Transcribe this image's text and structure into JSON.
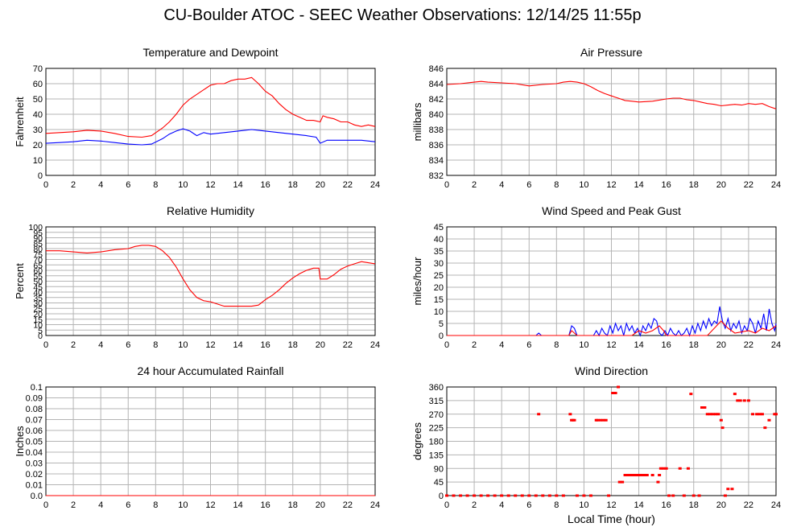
{
  "page": {
    "title": "CU-Boulder ATOC - SEEC Weather Observations: 12/14/25 11:55p"
  },
  "chart_data": [
    {
      "type": "line",
      "title": "Temperature and Dewpoint",
      "xlabel": "",
      "ylabel": "Fahrenheit",
      "xlim": [
        0,
        24
      ],
      "ylim": [
        0,
        70
      ],
      "xticks": [
        0,
        2,
        4,
        6,
        8,
        10,
        12,
        14,
        16,
        18,
        20,
        22,
        24
      ],
      "yticks": [
        0,
        10,
        20,
        30,
        40,
        50,
        60,
        70
      ],
      "ytick_labels": [
        "0",
        "10",
        "20",
        "30",
        "40",
        "50",
        "60",
        "70"
      ],
      "grid": true,
      "series": [
        {
          "color": "#ff0000",
          "x": [
            0,
            1,
            2,
            3,
            4,
            5,
            6,
            7,
            7.7,
            8.5,
            9,
            9.5,
            10,
            10.5,
            11,
            11.5,
            12,
            12.5,
            13,
            13.5,
            14,
            14.5,
            15,
            15.5,
            16,
            16.5,
            17,
            17.5,
            18,
            18.5,
            19,
            19.5,
            20,
            20.2,
            20.5,
            21,
            21.5,
            22,
            22.5,
            23,
            23.5,
            24
          ],
          "y": [
            27.5,
            28,
            28.5,
            29.5,
            29,
            27.5,
            25.5,
            25,
            26,
            31,
            35,
            40,
            46,
            50,
            53,
            56,
            59,
            60,
            60,
            62,
            63,
            63,
            64,
            60,
            55,
            52,
            47,
            43,
            40,
            38,
            36,
            36,
            35,
            39,
            38,
            37,
            35,
            35,
            33,
            32,
            33,
            32
          ]
        },
        {
          "color": "#0000ff",
          "x": [
            0,
            1,
            2,
            3,
            4,
            5,
            6,
            7,
            7.7,
            8.5,
            9,
            9.5,
            10,
            10.5,
            11,
            11.5,
            12,
            13,
            14,
            15,
            16,
            17,
            18,
            19,
            19.7,
            20,
            20.5,
            21,
            22,
            23,
            24
          ],
          "y": [
            21,
            21.5,
            22,
            23,
            22.5,
            21.5,
            20.5,
            20,
            20.5,
            24,
            27,
            29,
            30.5,
            29,
            26,
            28,
            27,
            28,
            29,
            30,
            29,
            28,
            27,
            26,
            25,
            21,
            23,
            23,
            23,
            23,
            22
          ]
        }
      ]
    },
    {
      "type": "line",
      "title": "Air Pressure",
      "xlabel": "",
      "ylabel": "millibars",
      "xlim": [
        0,
        24
      ],
      "ylim": [
        832,
        846
      ],
      "xticks": [
        0,
        2,
        4,
        6,
        8,
        10,
        12,
        14,
        16,
        18,
        20,
        22,
        24
      ],
      "yticks": [
        832,
        834,
        836,
        838,
        840,
        842,
        844,
        846
      ],
      "ytick_labels": [
        "832",
        "834",
        "836",
        "838",
        "840",
        "842",
        "844",
        "846"
      ],
      "grid": true,
      "series": [
        {
          "color": "#ff0000",
          "x": [
            0,
            1,
            2,
            2.5,
            3,
            4,
            5,
            6,
            7,
            8,
            8.5,
            9,
            9.5,
            10,
            10.5,
            11,
            11.5,
            12,
            12.5,
            13,
            13.5,
            14,
            15,
            16,
            16.5,
            17,
            17.5,
            18,
            18.5,
            19,
            19.5,
            20,
            20.5,
            21,
            21.5,
            22,
            22.5,
            23,
            23.5,
            24
          ],
          "y": [
            843.9,
            844,
            844.2,
            844.3,
            844.2,
            844.1,
            844,
            843.7,
            843.9,
            844,
            844.2,
            844.3,
            844.2,
            844,
            843.6,
            843.1,
            842.7,
            842.4,
            842.1,
            841.8,
            841.7,
            841.6,
            841.7,
            842,
            842.1,
            842.1,
            841.9,
            841.8,
            841.6,
            841.4,
            841.3,
            841.1,
            841.2,
            841.3,
            841.2,
            841.4,
            841.3,
            841.4,
            841,
            840.7
          ]
        }
      ]
    },
    {
      "type": "line",
      "title": "Relative Humidity",
      "xlabel": "",
      "ylabel": "Percent",
      "xlim": [
        0,
        24
      ],
      "ylim": [
        0,
        100
      ],
      "xticks": [
        0,
        2,
        4,
        6,
        8,
        10,
        12,
        14,
        16,
        18,
        20,
        22,
        24
      ],
      "yticks": [
        0,
        5,
        10,
        15,
        20,
        25,
        30,
        35,
        40,
        45,
        50,
        55,
        60,
        65,
        70,
        75,
        80,
        85,
        90,
        95,
        100
      ],
      "ytick_labels": [
        "0",
        "5",
        "10",
        "15",
        "20",
        "25",
        "30",
        "35",
        "40",
        "45",
        "50",
        "55",
        "60",
        "65",
        "70",
        "75",
        "80",
        "85",
        "90",
        "95",
        "100"
      ],
      "grid": true,
      "series": [
        {
          "color": "#ff0000",
          "x": [
            0,
            1,
            2,
            3,
            4,
            5,
            6,
            6.5,
            7,
            7.5,
            8,
            8.5,
            9,
            9.5,
            10,
            10.5,
            11,
            11.5,
            12,
            12.5,
            13,
            13.5,
            14,
            14.5,
            15,
            15.5,
            16,
            16.5,
            17,
            17.5,
            18,
            18.5,
            19,
            19.5,
            19.9,
            20,
            20.5,
            21,
            21.5,
            22,
            22.5,
            23,
            23.5,
            24
          ],
          "y": [
            78,
            78,
            77,
            76,
            77,
            79,
            80,
            82,
            83,
            83,
            82,
            78,
            72,
            63,
            52,
            42,
            35,
            32,
            31,
            29,
            27,
            27,
            27,
            27,
            27,
            28,
            33,
            37,
            42,
            48,
            53,
            57,
            60,
            62,
            62,
            52,
            52,
            56,
            61,
            64,
            66,
            68,
            67,
            66
          ]
        }
      ]
    },
    {
      "type": "line",
      "title": "Wind Speed and Peak Gust",
      "xlabel": "",
      "ylabel": "miles/hour",
      "xlim": [
        0,
        24
      ],
      "ylim": [
        0,
        45
      ],
      "xticks": [
        0,
        2,
        4,
        6,
        8,
        10,
        12,
        14,
        16,
        18,
        20,
        22,
        24
      ],
      "yticks": [
        0,
        5,
        10,
        15,
        20,
        25,
        30,
        35,
        40,
        45
      ],
      "ytick_labels": [
        "0",
        "5",
        "10",
        "15",
        "20",
        "25",
        "30",
        "35",
        "40",
        "45"
      ],
      "grid": true,
      "series": [
        {
          "color": "#0000ff",
          "x": [
            0,
            6.5,
            6.7,
            6.9,
            8.9,
            9.1,
            9.3,
            9.5,
            10.7,
            10.9,
            11.1,
            11.3,
            11.5,
            11.7,
            11.9,
            12.1,
            12.3,
            12.5,
            12.7,
            12.9,
            13.1,
            13.3,
            13.5,
            13.7,
            13.9,
            14.1,
            14.3,
            14.5,
            14.7,
            14.9,
            15.1,
            15.3,
            15.5,
            15.7,
            15.9,
            16.1,
            16.3,
            16.5,
            16.7,
            16.9,
            17.1,
            17.3,
            17.5,
            17.7,
            17.9,
            18.1,
            18.3,
            18.5,
            18.7,
            18.9,
            19.1,
            19.3,
            19.5,
            19.7,
            19.9,
            20.1,
            20.3,
            20.5,
            20.7,
            20.9,
            21.1,
            21.3,
            21.5,
            21.7,
            21.9,
            22.1,
            22.3,
            22.5,
            22.7,
            22.9,
            23.1,
            23.3,
            23.5,
            23.7,
            23.9,
            24
          ],
          "y": [
            0,
            0,
            1,
            0,
            0,
            4,
            3,
            0,
            0,
            2,
            0,
            3,
            1,
            0,
            4,
            1,
            5,
            2,
            4,
            0,
            5,
            2,
            4,
            1,
            3,
            0,
            4,
            2,
            5,
            3,
            7,
            6,
            1,
            0,
            2,
            0,
            3,
            1,
            0,
            2,
            0,
            1,
            3,
            0,
            4,
            1,
            5,
            2,
            6,
            3,
            7,
            4,
            6,
            5,
            12,
            6,
            3,
            7,
            2,
            5,
            3,
            6,
            1,
            4,
            2,
            7,
            5,
            1,
            6,
            3,
            9,
            2,
            11,
            5,
            2,
            5
          ]
        },
        {
          "color": "#ff0000",
          "x": [
            0,
            8.9,
            9.1,
            9.3,
            9.5,
            13.5,
            14,
            14.5,
            15,
            15.5,
            15.8,
            16,
            19,
            19.5,
            20,
            20.5,
            21,
            22,
            22.5,
            23,
            23.5,
            24
          ],
          "y": [
            0,
            0,
            2,
            1,
            0,
            0,
            2,
            1,
            2,
            4,
            2,
            0,
            0,
            3,
            6,
            3,
            1,
            2,
            1,
            3,
            2,
            4
          ]
        }
      ]
    },
    {
      "type": "line",
      "title": "24 hour Accumulated Rainfall",
      "xlabel": "",
      "ylabel": "Inches",
      "xlim": [
        0,
        24
      ],
      "ylim": [
        0,
        0.1
      ],
      "xticks": [
        0,
        2,
        4,
        6,
        8,
        10,
        12,
        14,
        16,
        18,
        20,
        22,
        24
      ],
      "yticks": [
        0,
        0.01,
        0.02,
        0.03,
        0.04,
        0.05,
        0.06,
        0.07,
        0.08,
        0.09,
        0.1
      ],
      "ytick_labels": [
        "0.0",
        "0.01",
        "0.02",
        "0.03",
        "0.04",
        "0.05",
        "0.06",
        "0.07",
        "0.08",
        "0.09",
        "0.1"
      ],
      "grid": true,
      "series": [
        {
          "color": "#ff0000",
          "x": [
            0,
            24
          ],
          "y": [
            0,
            0
          ]
        }
      ]
    },
    {
      "type": "scatter",
      "title": "Wind Direction",
      "xlabel": "Local Time (hour)",
      "ylabel": "degrees",
      "xlim": [
        0,
        24
      ],
      "ylim": [
        0,
        360
      ],
      "xticks": [
        0,
        2,
        4,
        6,
        8,
        10,
        12,
        14,
        16,
        18,
        20,
        22,
        24
      ],
      "yticks": [
        0,
        45,
        90,
        135,
        180,
        225,
        270,
        315,
        360
      ],
      "ytick_labels": [
        "0",
        "45",
        "90",
        "135",
        "180",
        "225",
        "270",
        "315",
        "360"
      ],
      "grid": true,
      "series": [
        {
          "color": "#ff0000",
          "x": [
            0,
            0.5,
            1,
            1.5,
            2,
            2.5,
            3,
            3.5,
            4,
            4.5,
            5,
            5.5,
            6,
            6.5,
            6.7,
            7,
            7.5,
            8,
            8.5,
            9,
            9.1,
            9.2,
            9.3,
            9.5,
            10,
            10.5,
            10.9,
            11,
            11.2,
            11.4,
            11.6,
            11.8,
            12.1,
            12.3,
            12.5,
            12.6,
            12.8,
            13,
            13.2,
            13.4,
            13.6,
            13.8,
            14,
            14.2,
            14.4,
            14.6,
            15,
            15.4,
            15.5,
            15.6,
            15.8,
            16,
            16.2,
            16.5,
            17,
            17.3,
            17.6,
            17.8,
            18,
            18.4,
            18.6,
            18.8,
            19,
            19.2,
            19.4,
            19.6,
            19.8,
            20,
            20.1,
            20.3,
            20.5,
            20.8,
            21,
            21.2,
            21.4,
            21.7,
            22,
            22.3,
            22.6,
            22.8,
            23,
            23.2,
            23.5,
            23.9,
            24
          ],
          "y": [
            0,
            0,
            0,
            0,
            0,
            0,
            0,
            0,
            0,
            0,
            0,
            0,
            0,
            0,
            270,
            0,
            0,
            0,
            0,
            270,
            250,
            250,
            250,
            0,
            0,
            0,
            250,
            250,
            250,
            250,
            250,
            0,
            340,
            340,
            360,
            45,
            45,
            68,
            68,
            68,
            68,
            68,
            68,
            68,
            68,
            68,
            68,
            45,
            68,
            90,
            90,
            90,
            0,
            0,
            90,
            0,
            90,
            337,
            0,
            0,
            292,
            292,
            270,
            270,
            270,
            270,
            270,
            250,
            225,
            0,
            22,
            22,
            337,
            315,
            315,
            315,
            315,
            270,
            270,
            270,
            270,
            225,
            250,
            270,
            270
          ]
        }
      ]
    }
  ]
}
